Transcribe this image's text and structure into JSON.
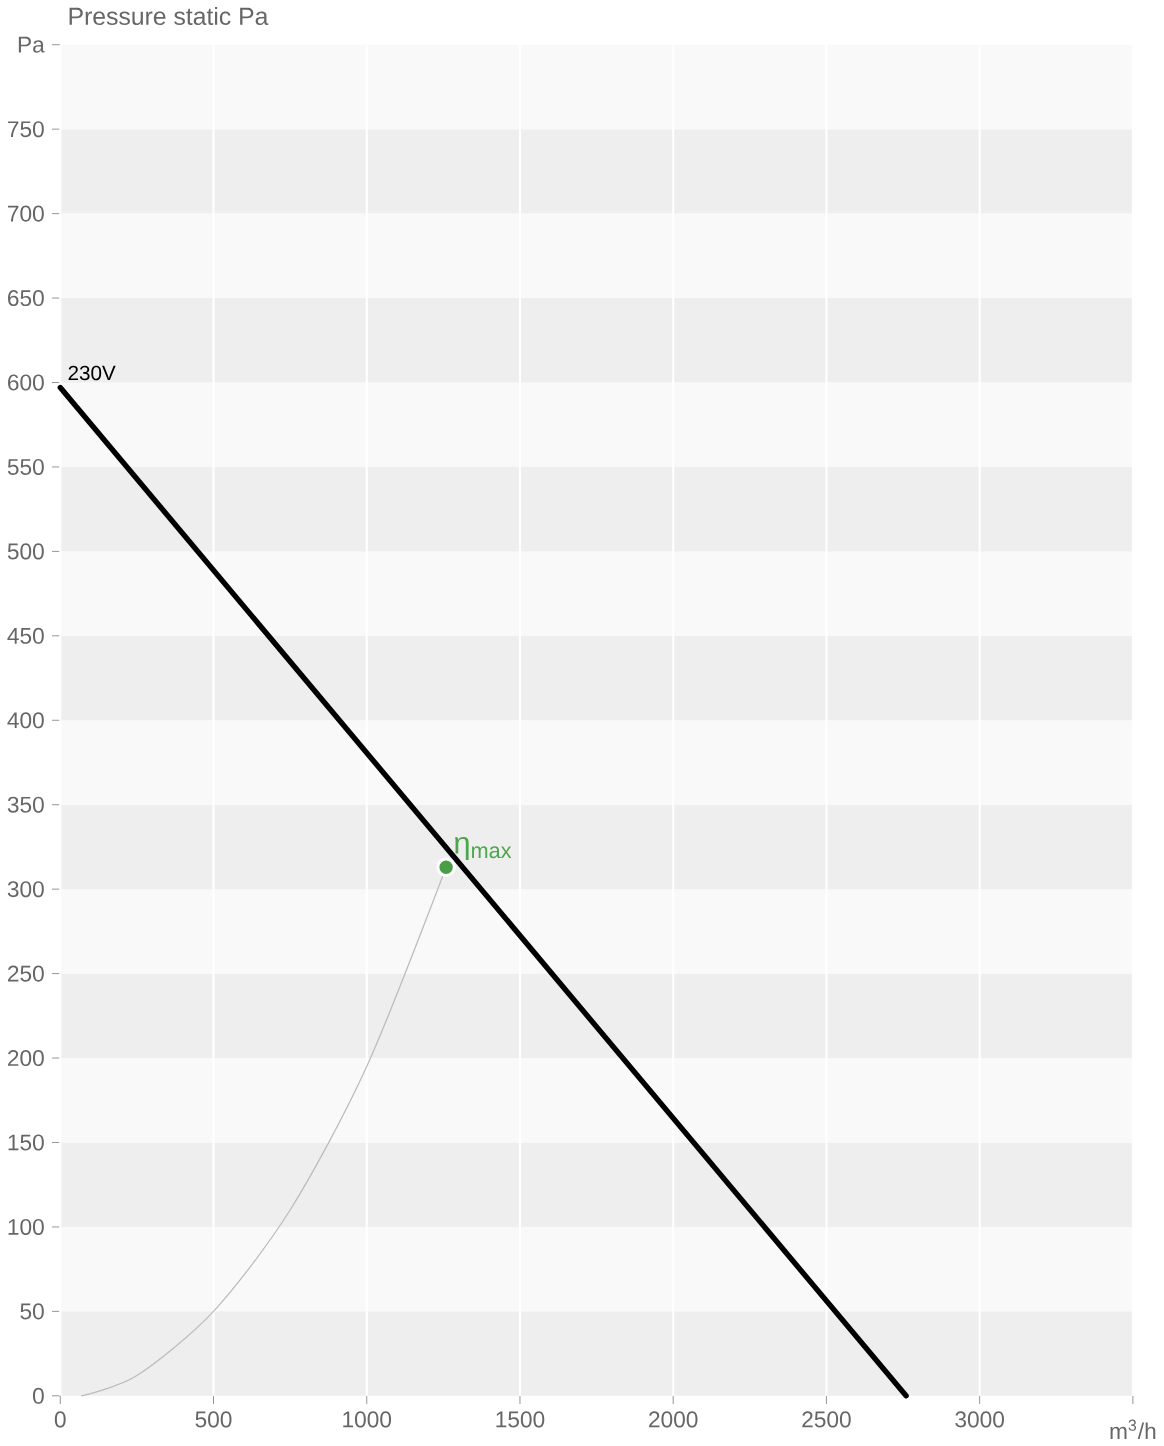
{
  "chart_data": {
    "type": "line",
    "title": "Pressure static Pa",
    "xlim": [
      0,
      3500
    ],
    "ylim": [
      0,
      800
    ],
    "xticks": [
      0,
      500,
      1000,
      1500,
      2000,
      2500,
      3000,
      {
        "value": 3500,
        "label": null
      }
    ],
    "xlabel": "m$^{3}$/h",
    "yticks": [
      0,
      50,
      100,
      150,
      200,
      250,
      300,
      350,
      400,
      450,
      500,
      550,
      600,
      650,
      700,
      750,
      {
        "value": 800,
        "label": "Pa"
      }
    ],
    "grid": true,
    "line_style": "solid",
    "series": [
      {
        "name": "230V",
        "color": "#000000",
        "x": [
          0,
          2760
        ],
        "values": [
          597,
          0
        ]
      },
      {
        "type": "line",
        "color": "#bbbbbb",
        "x": [
          70,
          250,
          500,
          750,
          1000,
          1259
        ],
        "values": [
          0,
          12,
          50,
          110,
          195,
          313
        ]
      },
      {
        "type": "scatter",
        "marker": "circle",
        "color": "#4a9e47",
        "x": [
          1259
        ],
        "values": [
          313
        ]
      }
    ],
    "annotations": [
      {
        "text": "η$_{max}$",
        "x": 1259,
        "y": 313
      }
    ]
  }
}
